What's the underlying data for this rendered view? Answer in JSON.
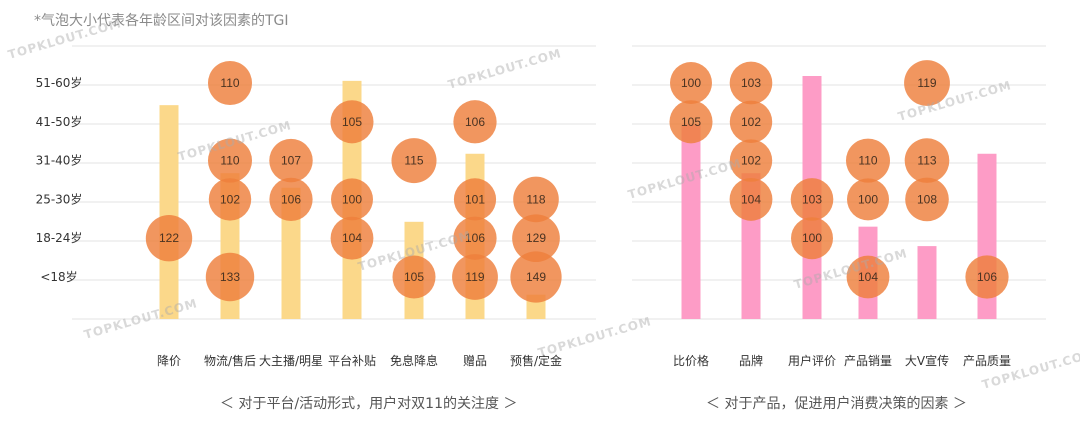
{
  "note": "*气泡大小代表各年龄区间对该因素的TGI",
  "watermark": "TOPKLOUT.COM",
  "age_labels": [
    "<18岁",
    "18-24岁",
    "25-30岁",
    "31-40岁",
    "41-50岁",
    "51-60岁"
  ],
  "charts": [
    {
      "caption": "＜ 对于平台/活动形式，用户对双11的关注度 ＞",
      "bar_color": "#fbd88a",
      "bubble_color": "#ee7f3c"
    },
    {
      "caption": "＜ 对于产品，促进用户消费决策的因素 ＞",
      "bar_color": "#fd9cc6",
      "bubble_color": "#ee7f3c"
    }
  ],
  "chart_data": [
    {
      "type": "bar",
      "bubble_metric": "TGI",
      "y_categories": [
        "<18岁",
        "18-24岁",
        "25-30岁",
        "31-40岁",
        "41-50岁",
        "51-60岁"
      ],
      "categories": [
        "降价",
        "物流/售后",
        "大主播/明星",
        "平台补贴",
        "免息降息",
        "赠品",
        "预售/定金"
      ],
      "bar_values": [
        0.88,
        0.6,
        0.54,
        0.98,
        0.4,
        0.68,
        0.1
      ],
      "bubbles": [
        {
          "category": "降价",
          "age": "18-24岁",
          "tgi": 122
        },
        {
          "category": "物流/售后",
          "age": "51-60岁",
          "tgi": 110
        },
        {
          "category": "物流/售后",
          "age": "31-40岁",
          "tgi": 110
        },
        {
          "category": "物流/售后",
          "age": "25-30岁",
          "tgi": 102
        },
        {
          "category": "物流/售后",
          "age": "<18岁",
          "tgi": 133
        },
        {
          "category": "大主播/明星",
          "age": "31-40岁",
          "tgi": 107
        },
        {
          "category": "大主播/明星",
          "age": "25-30岁",
          "tgi": 106
        },
        {
          "category": "平台补贴",
          "age": "41-50岁",
          "tgi": 105
        },
        {
          "category": "平台补贴",
          "age": "25-30岁",
          "tgi": 100
        },
        {
          "category": "平台补贴",
          "age": "18-24岁",
          "tgi": 104
        },
        {
          "category": "免息降息",
          "age": "31-40岁",
          "tgi": 115
        },
        {
          "category": "免息降息",
          "age": "<18岁",
          "tgi": 105
        },
        {
          "category": "赠品",
          "age": "41-50岁",
          "tgi": 106
        },
        {
          "category": "赠品",
          "age": "25-30岁",
          "tgi": 101
        },
        {
          "category": "赠品",
          "age": "18-24岁",
          "tgi": 106
        },
        {
          "category": "赠品",
          "age": "<18岁",
          "tgi": 119
        },
        {
          "category": "预售/定金",
          "age": "25-30岁",
          "tgi": 118
        },
        {
          "category": "预售/定金",
          "age": "18-24岁",
          "tgi": 129
        },
        {
          "category": "预售/定金",
          "age": "<18岁",
          "tgi": 149
        }
      ]
    },
    {
      "type": "bar",
      "bubble_metric": "TGI",
      "y_categories": [
        "<18岁",
        "18-24岁",
        "25-30岁",
        "31-40岁",
        "41-50岁",
        "51-60岁"
      ],
      "categories": [
        "比价格",
        "品牌",
        "用户评价",
        "产品销量",
        "大V宣传",
        "产品质量"
      ],
      "bar_values": [
        0.8,
        0.6,
        1.0,
        0.38,
        0.3,
        0.68
      ],
      "bubbles": [
        {
          "category": "比价格",
          "age": "51-60岁",
          "tgi": 100
        },
        {
          "category": "比价格",
          "age": "41-50岁",
          "tgi": 105
        },
        {
          "category": "品牌",
          "age": "51-60岁",
          "tgi": 103
        },
        {
          "category": "品牌",
          "age": "41-50岁",
          "tgi": 102
        },
        {
          "category": "品牌",
          "age": "31-40岁",
          "tgi": 102
        },
        {
          "category": "品牌",
          "age": "25-30岁",
          "tgi": 104
        },
        {
          "category": "用户评价",
          "age": "25-30岁",
          "tgi": 103
        },
        {
          "category": "用户评价",
          "age": "18-24岁",
          "tgi": 100
        },
        {
          "category": "产品销量",
          "age": "31-40岁",
          "tgi": 110
        },
        {
          "category": "产品销量",
          "age": "25-30岁",
          "tgi": 100
        },
        {
          "category": "产品销量",
          "age": "<18岁",
          "tgi": 104
        },
        {
          "category": "大V宣传",
          "age": "51-60岁",
          "tgi": 119
        },
        {
          "category": "大V宣传",
          "age": "31-40岁",
          "tgi": 113
        },
        {
          "category": "大V宣传",
          "age": "25-30岁",
          "tgi": 108
        },
        {
          "category": "产品质量",
          "age": "<18岁",
          "tgi": 106
        }
      ]
    }
  ]
}
